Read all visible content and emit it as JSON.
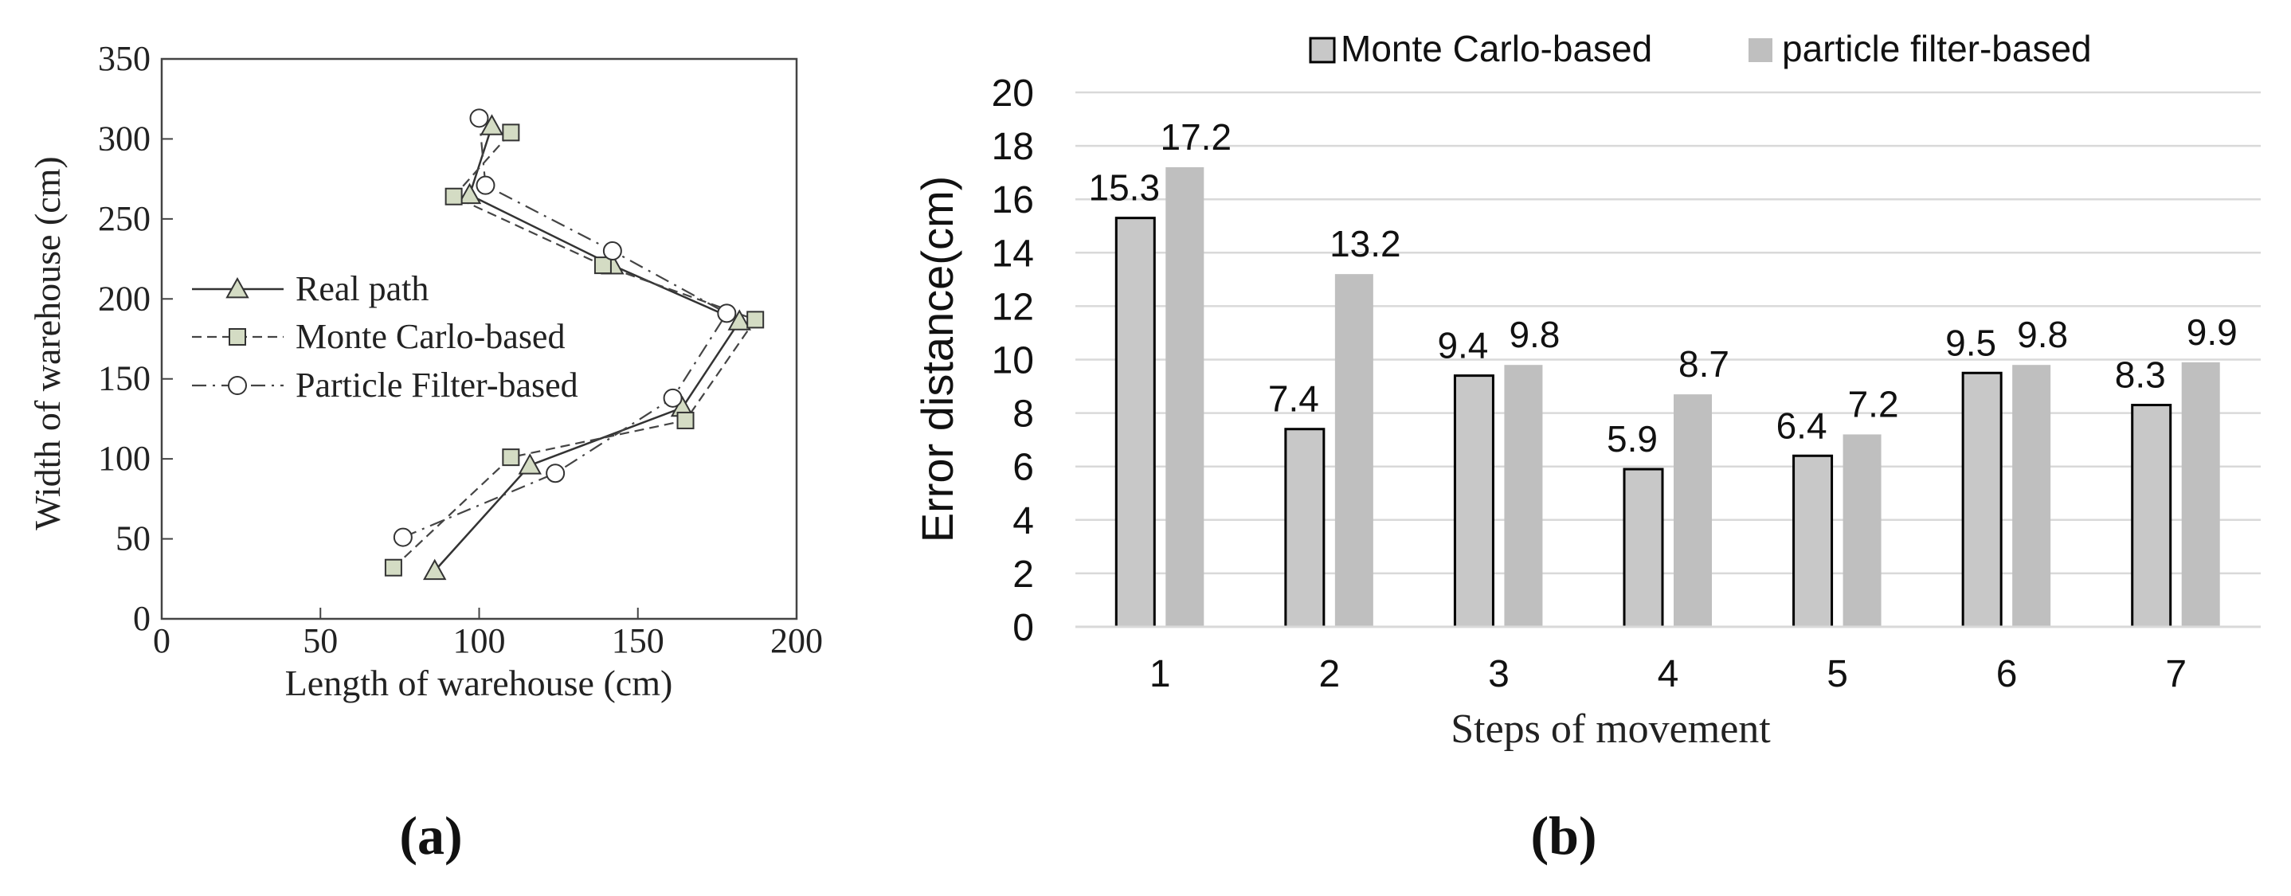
{
  "panel_a": {
    "caption": "(a)",
    "chart_data": {
      "type": "line",
      "title": "",
      "xlabel": "Length of warehouse (cm)",
      "ylabel": "Width of warehouse (cm)",
      "xlim": [
        0,
        200
      ],
      "ylim": [
        0,
        350
      ],
      "xticks": [
        0,
        50,
        100,
        150,
        200
      ],
      "yticks": [
        0,
        50,
        100,
        150,
        200,
        250,
        300,
        350
      ],
      "legend_position": "center-left",
      "series": [
        {
          "name": "Real path",
          "marker": "triangle",
          "line_style": "solid",
          "points": [
            [
              86,
              30
            ],
            [
              116,
              96
            ],
            [
              164,
              132
            ],
            [
              182,
              186
            ],
            [
              142,
              221
            ],
            [
              97,
              265
            ],
            [
              104,
              308
            ]
          ]
        },
        {
          "name": "Monte Carlo-based",
          "marker": "square",
          "line_style": "dashed",
          "points": [
            [
              73,
              32
            ],
            [
              110,
              101
            ],
            [
              165,
              124
            ],
            [
              187,
              187
            ],
            [
              139,
              221
            ],
            [
              92,
              264
            ],
            [
              110,
              304
            ]
          ]
        },
        {
          "name": "Particle Filter-based",
          "marker": "circle",
          "line_style": "dashdot",
          "points": [
            [
              76,
              51
            ],
            [
              124,
              91
            ],
            [
              161,
              138
            ],
            [
              178,
              191
            ],
            [
              142,
              230
            ],
            [
              102,
              271
            ],
            [
              100,
              313
            ]
          ]
        }
      ]
    }
  },
  "panel_b": {
    "caption": "(b)",
    "chart_data": {
      "type": "bar",
      "title": "",
      "xlabel": "Steps of movement",
      "ylabel": "Error distance(cm)",
      "ylim": [
        0,
        20
      ],
      "yticks": [
        0,
        2,
        4,
        6,
        8,
        10,
        12,
        14,
        16,
        18,
        20
      ],
      "grid": true,
      "legend_position": "top",
      "categories": [
        "1",
        "2",
        "3",
        "4",
        "5",
        "6",
        "7"
      ],
      "series": [
        {
          "name": "Monte Carlo-based",
          "color": "#c8c8c8",
          "outline": "#000000",
          "values": [
            15.3,
            7.4,
            9.4,
            5.9,
            6.4,
            9.5,
            8.3
          ]
        },
        {
          "name": "particle filter-based",
          "color": "#bfbfbf",
          "outline": "none",
          "values": [
            17.2,
            13.2,
            9.8,
            8.7,
            7.2,
            9.8,
            9.9
          ]
        }
      ]
    }
  }
}
